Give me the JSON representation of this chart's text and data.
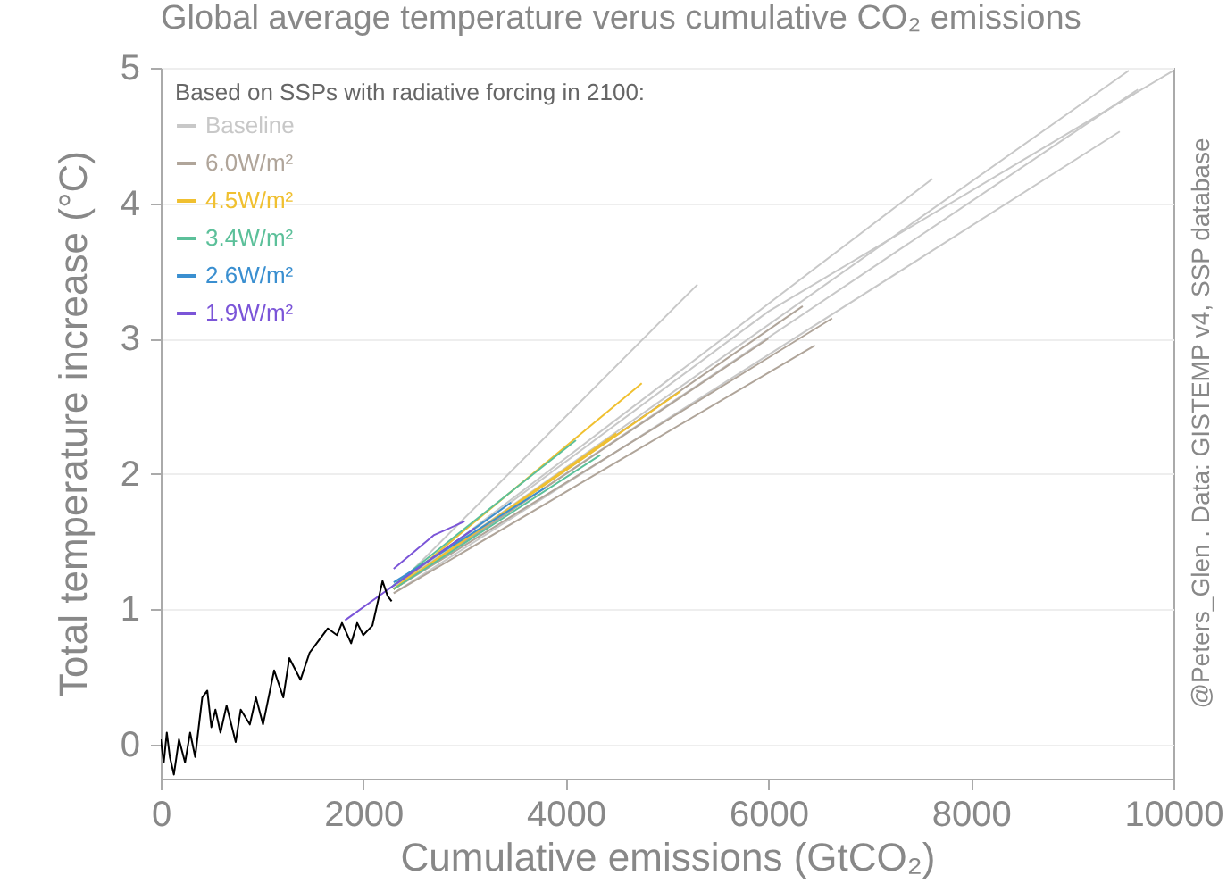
{
  "chart_data": {
    "type": "line",
    "title": "Global average temperature verus cumulative CO₂ emissions",
    "xlabel": "Cumulative emissions (GtCO₂)",
    "ylabel": "Total temperature increase (°C)",
    "legend_title": "Based on SSPs with radiative forcing in 2100:",
    "legend": "top left",
    "grid": "y",
    "xlim": [
      0,
      10000
    ],
    "xticks": [
      0,
      2000,
      4000,
      6000,
      8000,
      10000
    ],
    "ylim": [
      -0.25,
      5
    ],
    "yticks": [
      0,
      1,
      2,
      3,
      4,
      5
    ],
    "annotations": [
      "@Peters_Glen . Data: GISTEMP v4, SSP database"
    ],
    "series": [
      {
        "name": "Baseline",
        "color": "#c8c8c8",
        "x": [
          2300,
          5300
        ],
        "values": [
          1.15,
          3.4
        ]
      },
      {
        "color": "#c8c8c8",
        "x": [
          2300,
          6000,
          10000
        ],
        "values": [
          1.15,
          3.2,
          4.98
        ]
      },
      {
        "color": "#c8c8c8",
        "x": [
          2300,
          9560
        ],
        "values": [
          1.15,
          4.98
        ]
      },
      {
        "color": "#c8c8c8",
        "x": [
          2300,
          9650
        ],
        "values": [
          1.15,
          4.84
        ]
      },
      {
        "color": "#c8c8c8",
        "x": [
          2300,
          9470
        ],
        "values": [
          1.12,
          4.53
        ]
      },
      {
        "color": "#c8c8c8",
        "x": [
          2300,
          7620
        ],
        "values": [
          1.15,
          4.18
        ]
      },
      {
        "name": "6.0W/m²",
        "color": "#b0a59a",
        "x": [
          2300,
          6630
        ],
        "values": [
          1.15,
          3.15
        ]
      },
      {
        "color": "#b0a59a",
        "x": [
          2300,
          6340
        ],
        "values": [
          1.15,
          3.24
        ]
      },
      {
        "color": "#b0a59a",
        "x": [
          2300,
          6000
        ],
        "values": [
          1.15,
          3.0
        ]
      },
      {
        "color": "#b0a59a",
        "x": [
          2300,
          6460
        ],
        "values": [
          1.12,
          2.95
        ]
      },
      {
        "name": "4.5W/m²",
        "color": "#f0c030",
        "x": [
          2300,
          5130
        ],
        "values": [
          1.15,
          2.61
        ]
      },
      {
        "color": "#f0c030",
        "x": [
          2300,
          4750
        ],
        "values": [
          1.15,
          2.67
        ]
      },
      {
        "color": "#f0c030",
        "x": [
          2300,
          4500
        ],
        "values": [
          1.15,
          2.3
        ]
      },
      {
        "name": "3.4W/m²",
        "color": "#5cc09a",
        "x": [
          2300,
          4340
        ],
        "values": [
          1.15,
          2.14
        ]
      },
      {
        "color": "#5cc09a",
        "x": [
          2300,
          4100
        ],
        "values": [
          1.18,
          2.25
        ]
      },
      {
        "name": "2.6W/m²",
        "color": "#3a8fd0",
        "x": [
          2250,
          3460
        ],
        "values": [
          1.15,
          1.79
        ]
      },
      {
        "color": "#3a8fd0",
        "x": [
          2300,
          3800
        ],
        "values": [
          1.2,
          1.9
        ]
      },
      {
        "name": "1.9W/m²",
        "color": "#7b55d8",
        "x": [
          1820,
          2250,
          3100
        ],
        "values": [
          0.92,
          1.15,
          1.6
        ]
      },
      {
        "color": "#7b55d8",
        "x": [
          2300,
          2700,
          3000
        ],
        "values": [
          1.3,
          1.55,
          1.65
        ]
      },
      {
        "color": "#000000",
        "x": [
          0,
          30,
          60,
          90,
          130,
          180,
          240,
          290,
          340,
          410,
          460,
          500,
          540,
          590,
          650,
          740,
          790,
          880,
          940,
          1010,
          1120,
          1210,
          1270,
          1380,
          1470,
          1560,
          1650,
          1740,
          1790,
          1880,
          1940,
          2000,
          2090,
          2190,
          2240,
          2280
        ],
        "values": [
          0.04,
          -0.13,
          0.09,
          -0.09,
          -0.22,
          0.04,
          -0.13,
          0.09,
          -0.09,
          0.35,
          0.4,
          0.13,
          0.26,
          0.09,
          0.29,
          0.02,
          0.26,
          0.15,
          0.35,
          0.15,
          0.55,
          0.35,
          0.64,
          0.48,
          0.68,
          0.77,
          0.86,
          0.81,
          0.9,
          0.75,
          0.9,
          0.81,
          0.88,
          1.21,
          1.1,
          1.06
        ]
      }
    ]
  }
}
